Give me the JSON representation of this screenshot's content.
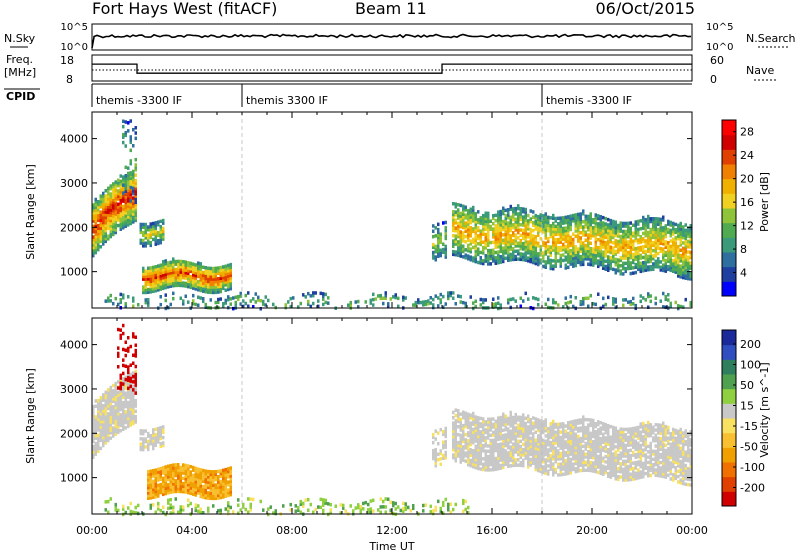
{
  "header": {
    "title": "Fort Hays West (fitACF)",
    "beam": "Beam 11",
    "date": "06/Oct/2015"
  },
  "top_panels": {
    "nsky_label": "N.Sky",
    "nsearch_label": "N.Search",
    "noise_tick_top": "10^5",
    "noise_tick_bottom": "10^0",
    "freq_label_line1": "Freq.",
    "freq_label_line2": "[MHz]",
    "freq_ticks": [
      "18",
      "8"
    ],
    "nave_label": "Nave",
    "nave_ticks": [
      "60",
      "0"
    ],
    "cpid_label": "CPID",
    "cpid_segments": [
      {
        "start_hour": 0,
        "label": "themis -3300 IF"
      },
      {
        "start_hour": 6,
        "label": "themis 3300 IF"
      },
      {
        "start_hour": 18,
        "label": "themis -3300 IF"
      }
    ],
    "freq_steps_mhz": [
      {
        "from": 0.0,
        "to": 1.8,
        "value": 14.5
      },
      {
        "from": 1.8,
        "to": 14.0,
        "value": 11.0
      },
      {
        "from": 14.0,
        "to": 24.0,
        "value": 14.5
      }
    ]
  },
  "colors": {
    "power_scale": [
      "#0000ff",
      "#1e3fa0",
      "#2e6fa0",
      "#3a9a7a",
      "#50aa50",
      "#8fc33a",
      "#f0d020",
      "#f0b000",
      "#f08000",
      "#e04000",
      "#d00000",
      "#ff0000"
    ],
    "velocity_scale": [
      "#1a2a9a",
      "#2f4fc0",
      "#2f7f5f",
      "#4fa04f",
      "#8fd040",
      "#c8c8c8",
      "#f8e060",
      "#f8c030",
      "#f0a000",
      "#f07000",
      "#e04000",
      "#d00000"
    ]
  },
  "chart_data": [
    {
      "type": "heatmap",
      "name": "power",
      "xlabel": "",
      "ylabel": "Slant Range [km]",
      "xlim": [
        0,
        24
      ],
      "ylim": [
        180,
        4600
      ],
      "x_ticks": [
        "00:00",
        "04:00",
        "08:00",
        "12:00",
        "16:00",
        "20:00",
        "00:00"
      ],
      "y_ticks": [
        1000,
        2000,
        3000,
        4000
      ],
      "colorbar_label": "Power [dB]",
      "colorbar_ticks": [
        4,
        8,
        12,
        16,
        20,
        24,
        28
      ],
      "colorbar_range": [
        0,
        30
      ],
      "regions": [
        {
          "t0": 0.0,
          "t1": 1.8,
          "r0": 1400,
          "r1": 2600,
          "slope": 900,
          "level": 21,
          "density": 0.95
        },
        {
          "t0": 1.2,
          "t1": 1.8,
          "r0": 2600,
          "r1": 4500,
          "slope": 0,
          "level": 10,
          "density": 0.25
        },
        {
          "t0": 1.9,
          "t1": 2.9,
          "r0": 1700,
          "r1": 2200,
          "slope": 0,
          "level": 14,
          "density": 0.8
        },
        {
          "t0": 2.0,
          "t1": 5.5,
          "r0": 650,
          "r1": 1250,
          "slope": 0,
          "level": 20,
          "density": 0.95
        },
        {
          "t0": 13.6,
          "t1": 14.1,
          "r0": 1300,
          "r1": 2100,
          "slope": 0,
          "level": 12,
          "density": 0.6
        },
        {
          "t0": 14.4,
          "t1": 24.0,
          "r0": 1350,
          "r1": 2550,
          "slope": -400,
          "level": 16,
          "density": 0.8
        },
        {
          "t0": 0.5,
          "t1": 24.0,
          "r0": 180,
          "r1": 520,
          "slope": 0,
          "level": 10,
          "density": 0.25
        }
      ]
    },
    {
      "type": "heatmap",
      "name": "velocity",
      "xlabel": "Time UT",
      "ylabel": "Slant Range [km]",
      "xlim": [
        0,
        24
      ],
      "ylim": [
        180,
        4600
      ],
      "x_ticks": [
        "00:00",
        "04:00",
        "08:00",
        "12:00",
        "16:00",
        "20:00",
        "00:00"
      ],
      "y_ticks": [
        1000,
        2000,
        3000,
        4000
      ],
      "colorbar_label": "Velocity [m s^-1]",
      "colorbar_ticks": [
        200,
        100,
        50,
        15,
        -15,
        -50,
        -100,
        -200
      ],
      "regions": [
        {
          "t0": 0.0,
          "t1": 1.8,
          "r0": 1500,
          "r1": 2700,
          "slope": 900,
          "level": "gray",
          "density": 0.9
        },
        {
          "t0": 1.0,
          "t1": 1.8,
          "r0": 3000,
          "r1": 4500,
          "slope": 0,
          "level": "red",
          "density": 0.3
        },
        {
          "t0": 1.9,
          "t1": 2.9,
          "r0": 1750,
          "r1": 2200,
          "slope": 0,
          "level": "gray",
          "density": 0.7
        },
        {
          "t0": 2.2,
          "t1": 5.5,
          "r0": 650,
          "r1": 1300,
          "slope": 0,
          "level": "orange",
          "density": 0.95
        },
        {
          "t0": 13.6,
          "t1": 14.1,
          "r0": 1300,
          "r1": 2100,
          "slope": 0,
          "level": "gray",
          "density": 0.5
        },
        {
          "t0": 14.4,
          "t1": 24.0,
          "r0": 1350,
          "r1": 2550,
          "slope": -400,
          "level": "gray",
          "density": 0.85
        },
        {
          "t0": 0.5,
          "t1": 15.0,
          "r0": 180,
          "r1": 520,
          "slope": 0,
          "level": "green",
          "density": 0.3
        }
      ]
    }
  ]
}
